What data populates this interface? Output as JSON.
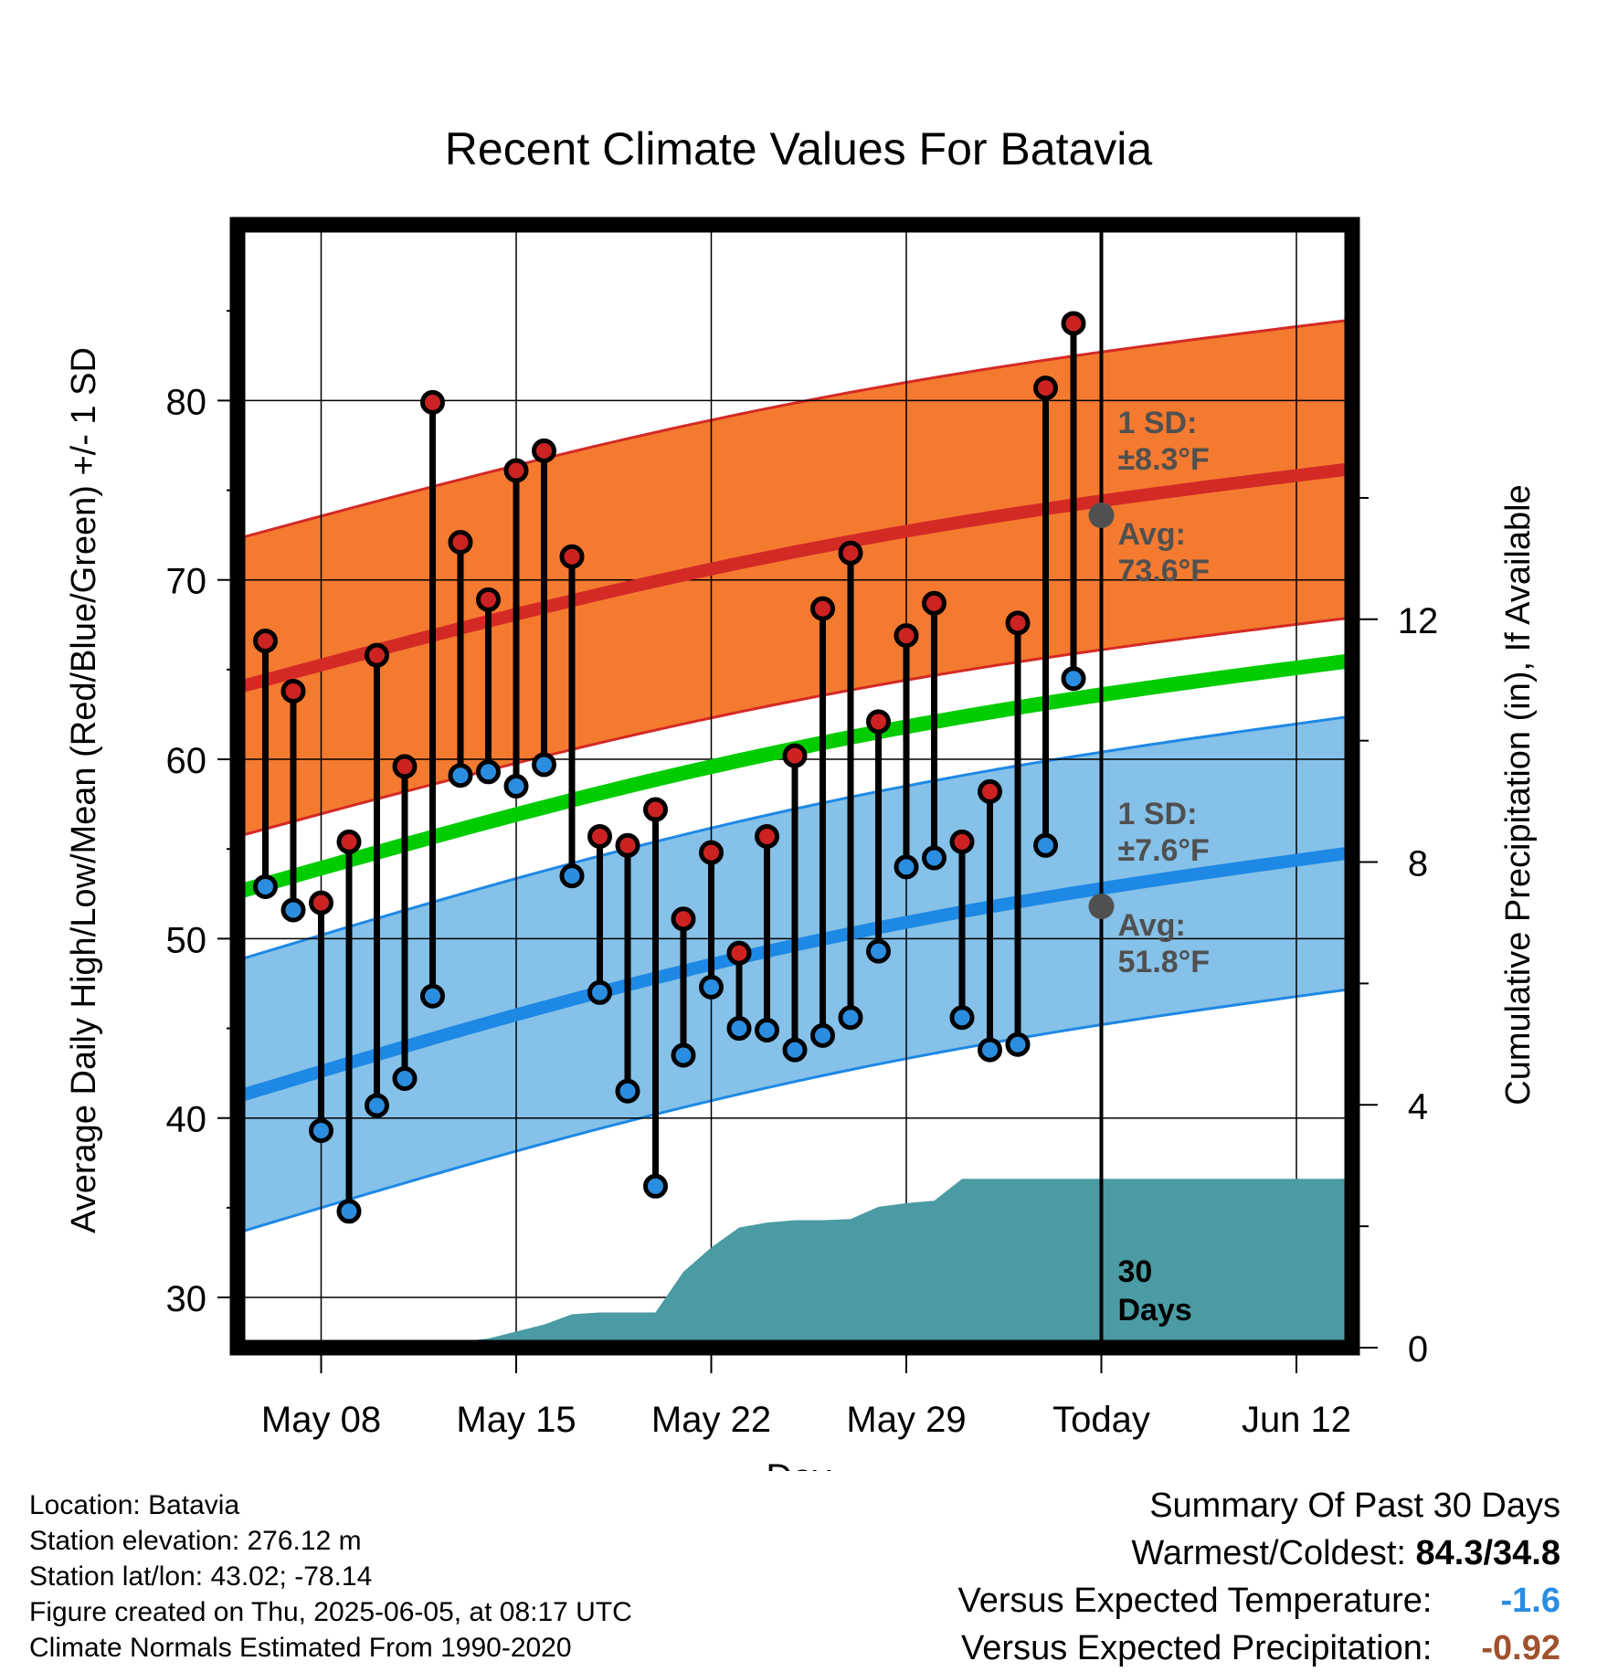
{
  "chart_data": {
    "type": "line",
    "title": "Recent Climate Values For Batavia",
    "xlabel": "Day",
    "ylabel_left": "Average Daily High/Low/Mean (Red/Blue/Green) +/- 1 SD",
    "ylabel_right": "Cumulative Precipitation (in), If Available",
    "ylim": [
      27.2,
      89.8
    ],
    "y2lim": [
      0,
      18.5
    ],
    "yticks_left": [
      30,
      40,
      50,
      60,
      70,
      80
    ],
    "yticks_right": [
      0,
      4,
      8,
      12
    ],
    "xlim": [
      "2025-05-05",
      "2025-06-14"
    ],
    "x_ticks": [
      {
        "date": "2025-05-08",
        "label": "May 08"
      },
      {
        "date": "2025-05-15",
        "label": "May 15"
      },
      {
        "date": "2025-05-22",
        "label": "May 22"
      },
      {
        "date": "2025-05-29",
        "label": "May 29"
      },
      {
        "date": "2025-06-05",
        "label": "Today"
      },
      {
        "date": "2025-06-12",
        "label": "Jun 12"
      }
    ],
    "today": "2025-06-05",
    "grid": true,
    "colors": {
      "high_band": "#f47a30",
      "high_band_edge": "#d42a25",
      "high_avg": "#d42a25",
      "low_band": "#85c1e8",
      "low_band_edge": "#1e88e5",
      "low_avg": "#1e88e5",
      "mean": "#00cc00",
      "precip": "#4a9ba3",
      "high_marker": "#cc2222",
      "low_marker": "#2a8de0",
      "annotation": "#505050"
    },
    "normal_high": {
      "dates": [
        "2025-05-05",
        "2025-06-14"
      ],
      "values": [
        64.0,
        76.2
      ]
    },
    "normal_low": {
      "dates": [
        "2025-05-05",
        "2025-06-14"
      ],
      "values": [
        41.2,
        54.8
      ]
    },
    "normal_mean": {
      "dates": [
        "2025-05-05",
        "2025-06-14"
      ],
      "values": [
        52.6,
        65.5
      ]
    },
    "high_sd": 8.3,
    "low_sd": 7.6,
    "daily": {
      "dates": [
        "2025-05-06",
        "2025-05-07",
        "2025-05-08",
        "2025-05-09",
        "2025-05-10",
        "2025-05-11",
        "2025-05-12",
        "2025-05-13",
        "2025-05-14",
        "2025-05-15",
        "2025-05-16",
        "2025-05-17",
        "2025-05-18",
        "2025-05-19",
        "2025-05-20",
        "2025-05-21",
        "2025-05-22",
        "2025-05-23",
        "2025-05-24",
        "2025-05-25",
        "2025-05-26",
        "2025-05-27",
        "2025-05-28",
        "2025-05-29",
        "2025-05-30",
        "2025-05-31",
        "2025-06-01",
        "2025-06-02",
        "2025-06-03",
        "2025-06-04"
      ],
      "high": [
        66.6,
        63.8,
        52.0,
        55.4,
        65.8,
        59.6,
        79.9,
        72.1,
        68.9,
        76.1,
        77.2,
        71.3,
        55.7,
        55.2,
        57.2,
        51.1,
        54.8,
        49.2,
        55.7,
        60.2,
        68.4,
        71.5,
        62.1,
        66.9,
        68.7,
        55.4,
        58.2,
        67.6,
        80.7,
        84.3
      ],
      "low": [
        52.9,
        51.6,
        39.3,
        34.8,
        40.7,
        42.2,
        46.8,
        59.1,
        59.3,
        58.5,
        59.7,
        53.5,
        47.0,
        41.5,
        36.2,
        43.5,
        47.3,
        45.0,
        44.9,
        43.8,
        44.6,
        45.6,
        49.3,
        54.0,
        54.5,
        45.6,
        43.8,
        44.1,
        55.2,
        64.5
      ]
    },
    "precip_cumulative": {
      "dates": [
        "2025-05-05",
        "2025-05-07",
        "2025-05-11",
        "2025-05-13",
        "2025-05-14",
        "2025-05-16",
        "2025-05-17",
        "2025-05-18",
        "2025-05-20",
        "2025-05-21",
        "2025-05-22",
        "2025-05-23",
        "2025-05-24",
        "2025-05-25",
        "2025-05-26",
        "2025-05-27",
        "2025-05-28",
        "2025-05-29",
        "2025-05-30",
        "2025-05-31",
        "2025-06-05",
        "2025-06-14"
      ],
      "values": [
        0,
        0.03,
        0.03,
        0.1,
        0.15,
        0.38,
        0.55,
        0.58,
        0.58,
        1.25,
        1.65,
        1.98,
        2.06,
        2.1,
        2.1,
        2.12,
        2.32,
        2.38,
        2.42,
        2.78,
        2.78,
        2.78
      ]
    },
    "annotations": {
      "high_sd_line1": "1 SD:",
      "high_sd_line2": "±8.3°F",
      "high_avg_line1": "Avg:",
      "high_avg_line2": "73.6°F",
      "low_sd_line1": "1 SD:",
      "low_sd_line2": "±7.6°F",
      "low_avg_line1": "Avg:",
      "low_avg_line2": "51.8°F",
      "days_line1": "30",
      "days_line2": "Days",
      "today_high_avg": 73.6,
      "today_low_avg": 51.8
    }
  },
  "footer": {
    "location": "Location: Batavia",
    "elevation": "Station elevation: 276.12 m",
    "latlon": "Station lat/lon: 43.02; -78.14",
    "created": "Figure created on Thu, 2025-06-05, at 08:17 UTC",
    "normals": "Climate Normals Estimated From 1990-2020"
  },
  "summary": {
    "title": "Summary Of Past 30 Days",
    "warmest_label": "Warmest/Coldest:",
    "warmest_value": "84.3/34.8",
    "temp_label": "Versus Expected Temperature:",
    "temp_value": "-1.6",
    "temp_color": "#2a8de0",
    "precip_label": "Versus Expected Precipitation:",
    "precip_value": "-0.92",
    "precip_color": "#a0522d"
  }
}
